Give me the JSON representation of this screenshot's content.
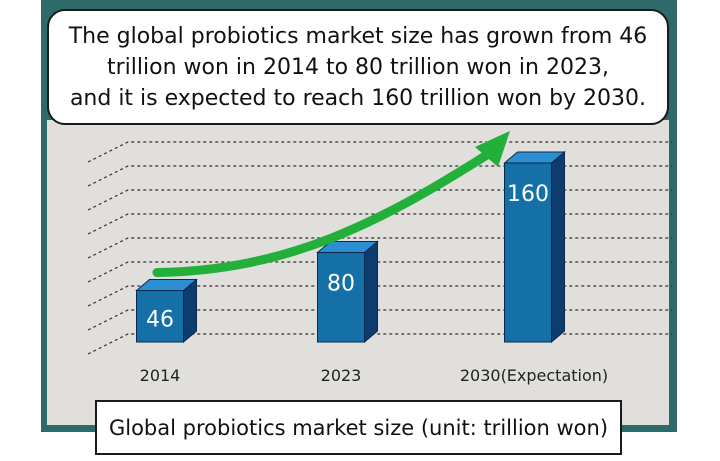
{
  "callout": {
    "lines": [
      "The global probiotics market size has grown from 46",
      "trillion won in 2014 to 80 trillion won in 2023,",
      "and it is expected to reach 160 trillion won by 2030."
    ]
  },
  "caption": "Global probiotics market size (unit: trillion won)",
  "colors": {
    "bar_front": "#1670a8",
    "bar_side": "#0e3c6e",
    "bar_top": "#2b8fd2",
    "arrow": "#22b03a",
    "panel": "#e0dfdc",
    "frame": "#2d6b6b"
  },
  "chart_data": {
    "type": "bar",
    "categories": [
      "2014",
      "2023",
      "2030(Expectation)"
    ],
    "values": [
      46,
      80,
      160
    ],
    "data_labels": [
      "46",
      "80",
      "160"
    ],
    "title": "",
    "xlabel": "",
    "ylabel": "",
    "ylim": [
      0,
      180
    ],
    "grid": true,
    "style": "3d-bars-with-rising-arrow"
  }
}
